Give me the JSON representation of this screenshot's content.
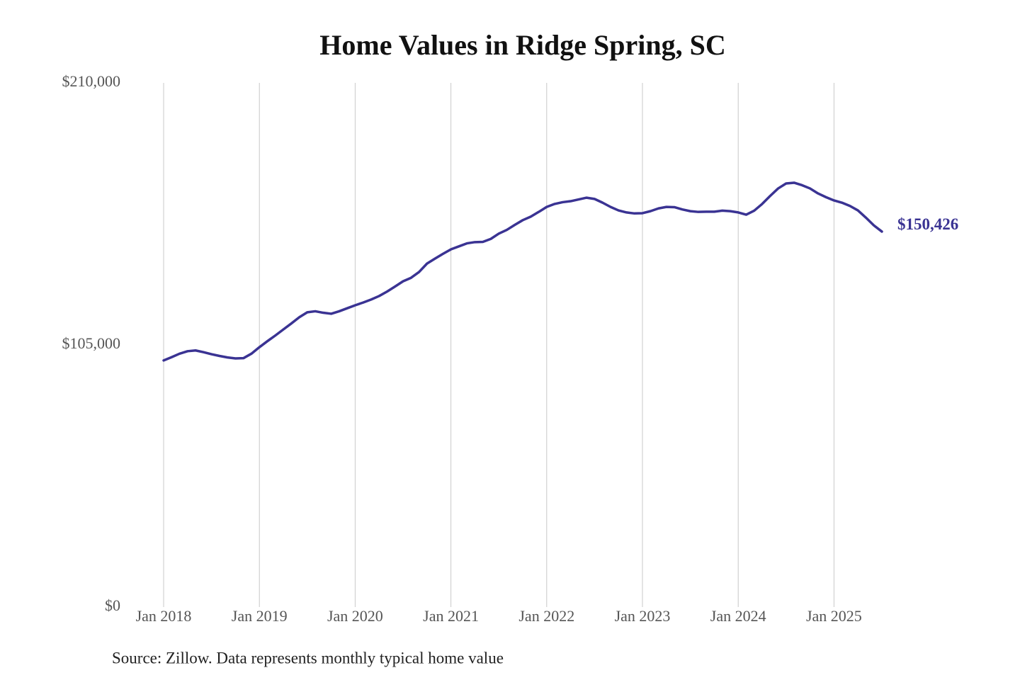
{
  "chart_data": {
    "type": "line",
    "title": "Home Values in Ridge Spring, SC",
    "source": "Source: Zillow. Data represents monthly typical home value",
    "x": [
      "2018-01",
      "2018-02",
      "2018-03",
      "2018-04",
      "2018-05",
      "2018-06",
      "2018-07",
      "2018-08",
      "2018-09",
      "2018-10",
      "2018-11",
      "2018-12",
      "2019-01",
      "2019-02",
      "2019-03",
      "2019-04",
      "2019-05",
      "2019-06",
      "2019-07",
      "2019-08",
      "2019-09",
      "2019-10",
      "2019-11",
      "2019-12",
      "2020-01",
      "2020-02",
      "2020-03",
      "2020-04",
      "2020-05",
      "2020-06",
      "2020-07",
      "2020-08",
      "2020-09",
      "2020-10",
      "2020-11",
      "2020-12",
      "2021-01",
      "2021-02",
      "2021-03",
      "2021-04",
      "2021-05",
      "2021-06",
      "2021-07",
      "2021-08",
      "2021-09",
      "2021-10",
      "2021-11",
      "2021-12",
      "2022-01",
      "2022-02",
      "2022-03",
      "2022-04",
      "2022-05",
      "2022-06",
      "2022-07",
      "2022-08",
      "2022-09",
      "2022-10",
      "2022-11",
      "2022-12",
      "2023-01",
      "2023-02",
      "2023-03",
      "2023-04",
      "2023-05",
      "2023-06",
      "2023-07",
      "2023-08",
      "2023-09",
      "2023-10",
      "2023-11",
      "2023-12",
      "2024-01",
      "2024-02",
      "2024-03",
      "2024-04",
      "2024-05",
      "2024-06",
      "2024-07",
      "2024-08",
      "2024-09",
      "2024-10",
      "2024-11",
      "2024-12",
      "2025-01",
      "2025-02",
      "2025-03",
      "2025-04",
      "2025-05",
      "2025-06",
      "2025-07"
    ],
    "series": [
      {
        "color": "#3a3393",
        "values": [
          98800,
          100100,
          101500,
          102500,
          102800,
          102100,
          101300,
          100600,
          100000,
          99600,
          99700,
          101500,
          104100,
          106500,
          108800,
          111200,
          113600,
          116100,
          118100,
          118500,
          117900,
          117500,
          118500,
          119700,
          120900,
          122000,
          123200,
          124600,
          126400,
          128400,
          130500,
          131900,
          134200,
          137600,
          139600,
          141500,
          143300,
          144500,
          145700,
          146200,
          146300,
          147500,
          149600,
          151100,
          153100,
          155000,
          156400,
          158300,
          160300,
          161500,
          162200,
          162600,
          163300,
          164000,
          163500,
          162000,
          160300,
          158900,
          158100,
          157700,
          157800,
          158600,
          159700,
          160300,
          160200,
          159300,
          158600,
          158300,
          158400,
          158400,
          158800,
          158600,
          158100,
          157200,
          158800,
          161500,
          164700,
          167700,
          169700,
          170000,
          169000,
          167700,
          165700,
          164200,
          162900,
          162000,
          160700,
          158900,
          156000,
          152900,
          150426
        ],
        "value_labels": [
          null,
          null,
          null,
          null,
          null,
          null,
          null,
          null,
          null,
          null,
          null,
          null,
          null,
          null,
          null,
          null,
          null,
          null,
          null,
          null,
          null,
          null,
          null,
          null,
          null,
          null,
          null,
          null,
          null,
          null,
          null,
          null,
          null,
          null,
          null,
          null,
          null,
          null,
          null,
          null,
          null,
          null,
          null,
          null,
          null,
          null,
          null,
          null,
          null,
          null,
          null,
          null,
          null,
          null,
          null,
          null,
          null,
          null,
          null,
          null,
          null,
          null,
          null,
          null,
          null,
          null,
          null,
          null,
          null,
          null,
          null,
          null,
          null,
          null,
          null,
          null,
          null,
          null,
          null,
          null,
          null,
          null,
          null,
          null,
          null,
          null,
          null,
          null,
          null,
          null,
          "$150,426"
        ]
      }
    ],
    "xlim": [
      "2018-01",
      "2025-07"
    ],
    "xticks": [
      {
        "value": "2018-01",
        "label": "Jan 2018"
      },
      {
        "value": "2019-01",
        "label": "Jan 2019"
      },
      {
        "value": "2020-01",
        "label": "Jan 2020"
      },
      {
        "value": "2021-01",
        "label": "Jan 2021"
      },
      {
        "value": "2022-01",
        "label": "Jan 2022"
      },
      {
        "value": "2023-01",
        "label": "Jan 2023"
      },
      {
        "value": "2024-01",
        "label": "Jan 2024"
      },
      {
        "value": "2025-01",
        "label": "Jan 2025"
      }
    ],
    "ylim": [
      0,
      210000
    ],
    "yticks": [
      {
        "value": 0,
        "label": "$0"
      },
      {
        "value": 105000,
        "label": "$105,000"
      },
      {
        "value": 210000,
        "label": "$210,000"
      }
    ],
    "grid": "x"
  }
}
